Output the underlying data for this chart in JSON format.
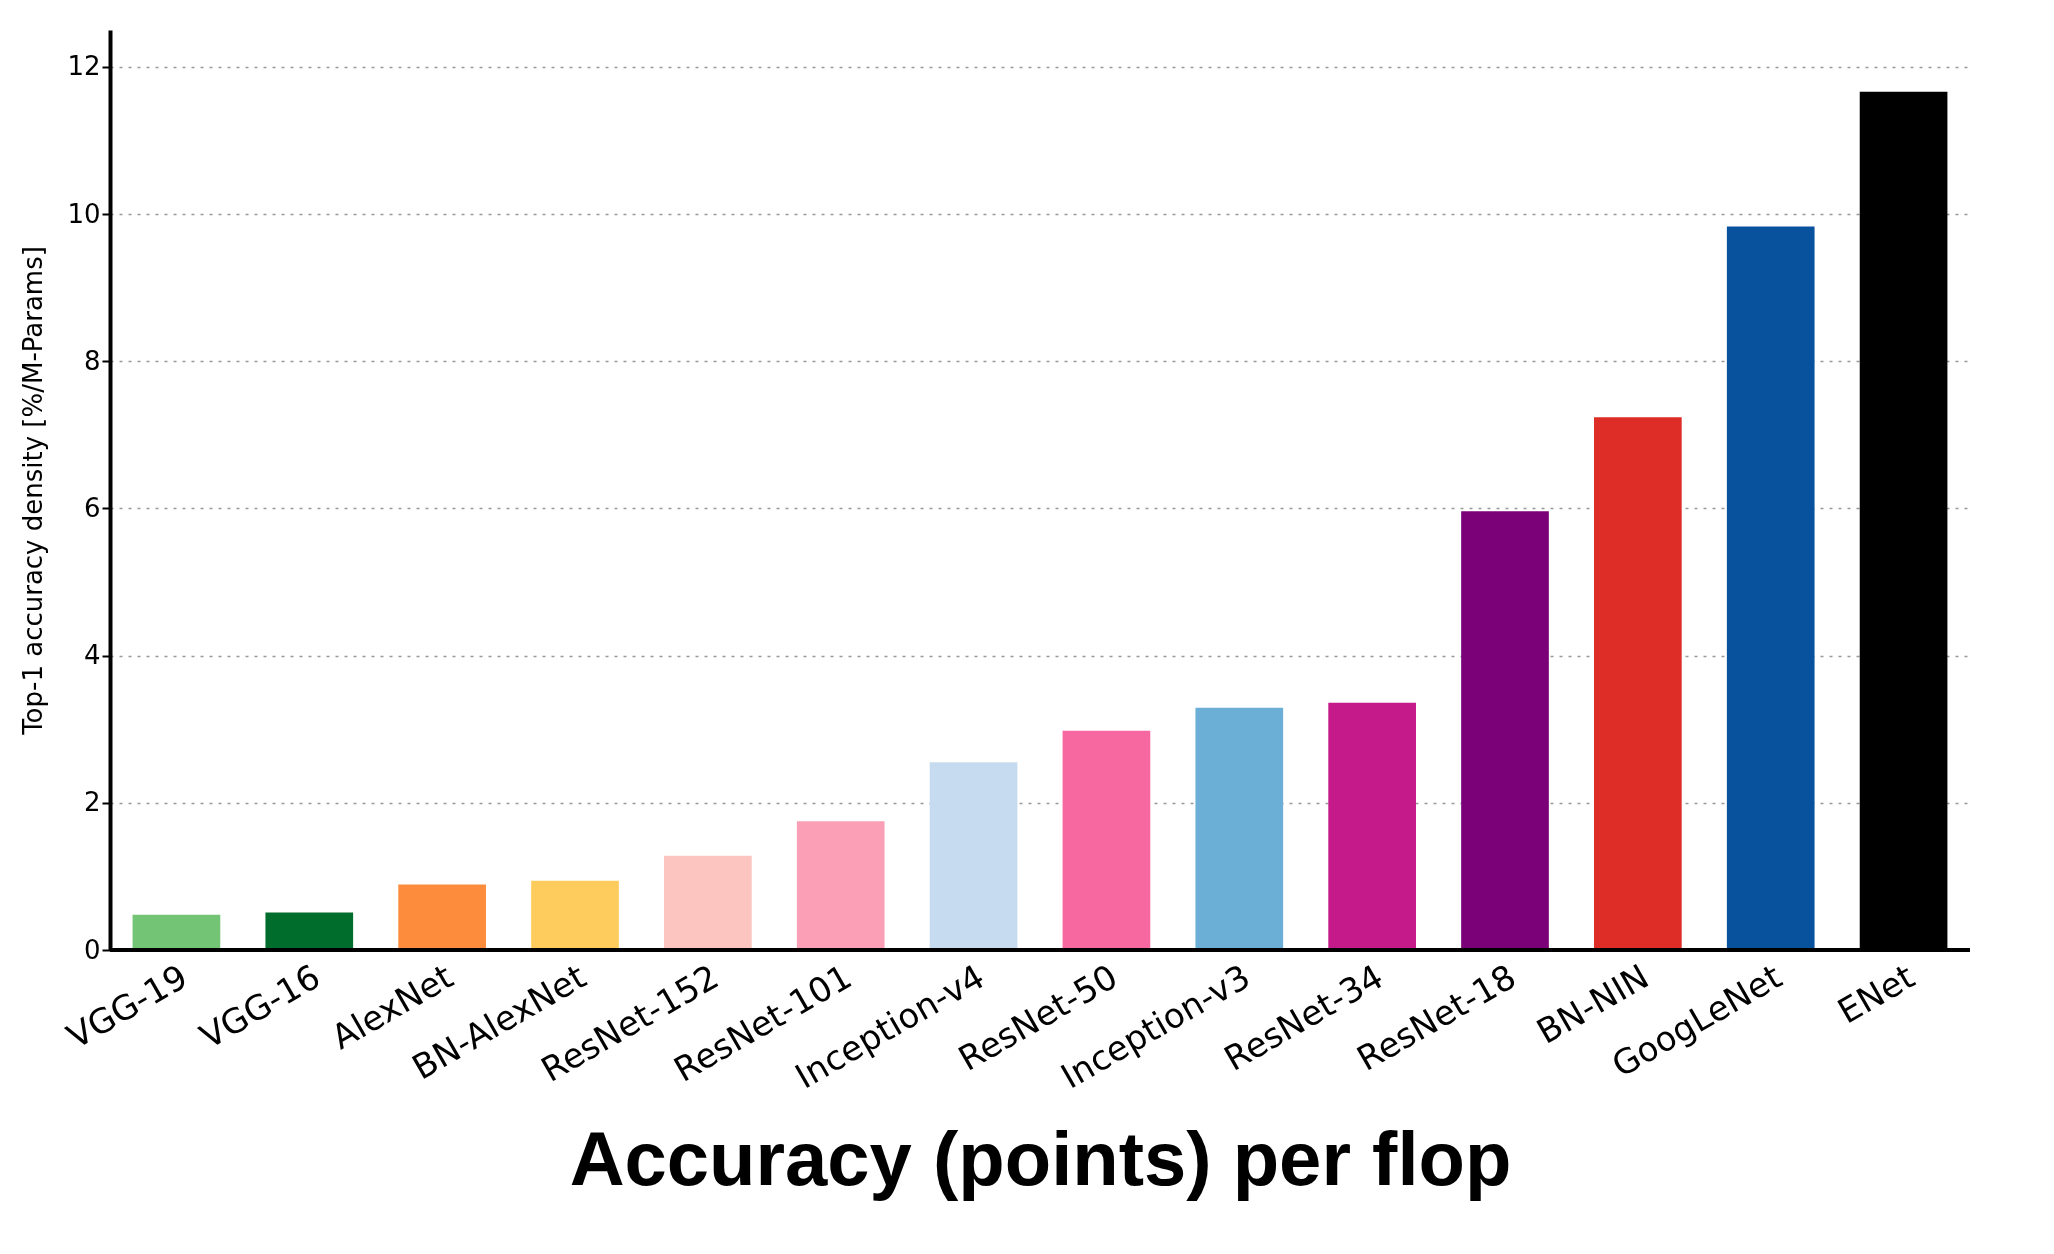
{
  "chart_data": {
    "type": "bar",
    "xlabel": "Accuracy (points) per flop",
    "ylabel": "Top-1 accuracy density [%/M-Params]",
    "categories": [
      "VGG-19",
      "VGG-16",
      "AlexNet",
      "BN-AlexNet",
      "ResNet-152",
      "ResNet-101",
      "Inception-v4",
      "ResNet-50",
      "Inception-v3",
      "ResNet-34",
      "ResNet-18",
      "BN-NIN",
      "GoogLeNet",
      "ENet"
    ],
    "values": [
      0.48,
      0.51,
      0.89,
      0.94,
      1.28,
      1.75,
      2.55,
      2.98,
      3.29,
      3.36,
      5.96,
      7.24,
      9.83,
      11.66
    ],
    "colors": [
      "#74c476",
      "#006d2c",
      "#fd8d3c",
      "#fecc5c",
      "#fcc5c0",
      "#fa9fb5",
      "#c6dbef",
      "#f768a1",
      "#6baed6",
      "#c51b8a",
      "#7a0177",
      "#de2d26",
      "#08519c",
      "#000000"
    ],
    "ylim": [
      0,
      12.5
    ],
    "yticks": [
      0,
      2,
      4,
      6,
      8,
      10,
      12
    ],
    "grid": "y"
  }
}
